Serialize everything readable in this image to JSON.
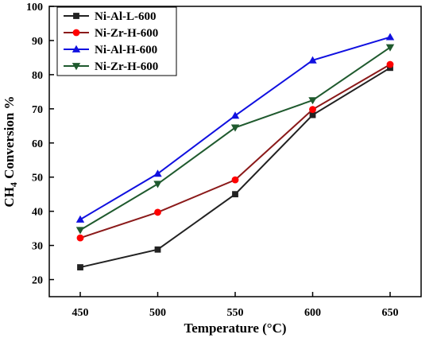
{
  "chart_data": {
    "type": "line",
    "title": "",
    "xlabel": "Temperature (°C)",
    "ylabel_main": "CH",
    "ylabel_sub": "4",
    "ylabel_rest": " Conversion %",
    "xlim": [
      430,
      670
    ],
    "ylim": [
      15,
      100
    ],
    "x": [
      450,
      500,
      550,
      600,
      650
    ],
    "x_ticks": [
      450,
      500,
      550,
      600,
      650
    ],
    "y_ticks": [
      20,
      30,
      40,
      50,
      60,
      70,
      80,
      90,
      100
    ],
    "grid": false,
    "legend_position": "top-left",
    "series": [
      {
        "name": "Ni-Al-L-600",
        "color": "#222222",
        "marker": "square",
        "values": [
          23.6,
          28.8,
          45.0,
          68.2,
          82.0
        ]
      },
      {
        "name": "Ni-Zr-H-600",
        "color": "#ff0000",
        "line_color": "#8b1a1a",
        "marker": "circle",
        "values": [
          32.2,
          39.7,
          49.2,
          69.8,
          83.0
        ]
      },
      {
        "name": "Ni-Al-H-600",
        "color": "#1010e0",
        "marker": "triangle-up",
        "values": [
          37.6,
          51.0,
          68.0,
          84.2,
          91.0
        ]
      },
      {
        "name": "Ni-Zr-H-600",
        "color": "#1f5a2e",
        "marker": "triangle-down",
        "values": [
          34.5,
          48.0,
          64.5,
          72.5,
          88.0
        ]
      }
    ]
  }
}
